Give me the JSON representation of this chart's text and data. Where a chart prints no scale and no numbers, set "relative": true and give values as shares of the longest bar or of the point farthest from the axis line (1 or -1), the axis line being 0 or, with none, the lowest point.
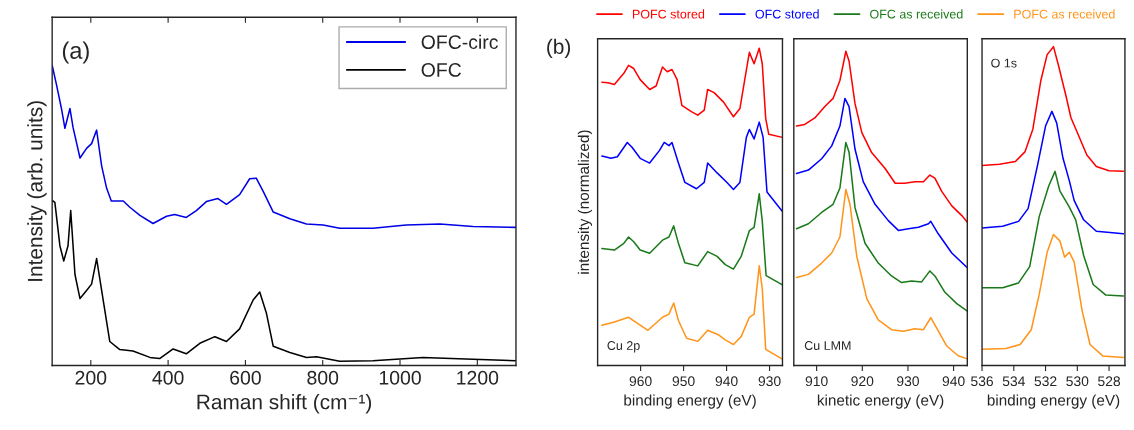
{
  "chart_data": [
    {
      "type": "line",
      "xlabel": "Raman shift (cm⁻¹)",
      "ylabel": "Intensity (arb. units)",
      "relative": true,
      "xlim": [
        100,
        1300
      ],
      "xticks": [
        200,
        400,
        600,
        800,
        1000,
        1200
      ],
      "legend": "top right",
      "annotations": [
        "(a)"
      ],
      "series": [
        {
          "name": "OFC-circ",
          "color": "#0000e6",
          "x": [
            100,
            111,
            124,
            133,
            146,
            154,
            172,
            189,
            202,
            215,
            228,
            241,
            253,
            284,
            301,
            327,
            361,
            396,
            417,
            447,
            473,
            499,
            529,
            551,
            585,
            611,
            628,
            646,
            672,
            715,
            758,
            801,
            844,
            930,
            1016,
            1103,
            1189,
            1300
          ],
          "values": [
            1.0,
            0.936,
            0.856,
            0.79,
            0.856,
            0.793,
            0.691,
            0.723,
            0.739,
            0.784,
            0.665,
            0.59,
            0.548,
            0.548,
            0.527,
            0.5,
            0.473,
            0.497,
            0.503,
            0.493,
            0.516,
            0.546,
            0.556,
            0.537,
            0.569,
            0.622,
            0.624,
            0.58,
            0.511,
            0.489,
            0.471,
            0.468,
            0.457,
            0.457,
            0.468,
            0.471,
            0.463,
            0.46
          ]
        },
        {
          "name": "OFC",
          "color": "#000000",
          "x": [
            100,
            107,
            120,
            130,
            141,
            148,
            159,
            172,
            189,
            202,
            215,
            228,
            249,
            275,
            309,
            353,
            378,
            413,
            447,
            482,
            521,
            551,
            585,
            620,
            637,
            654,
            672,
            715,
            758,
            784,
            844,
            930,
            1059,
            1189,
            1300
          ],
          "values": [
            0.55,
            0.543,
            0.399,
            0.348,
            0.399,
            0.516,
            0.303,
            0.223,
            0.25,
            0.271,
            0.356,
            0.25,
            0.08,
            0.053,
            0.048,
            0.027,
            0.023,
            0.055,
            0.039,
            0.074,
            0.096,
            0.08,
            0.122,
            0.218,
            0.245,
            0.176,
            0.064,
            0.043,
            0.027,
            0.029,
            0.014,
            0.016,
            0.027,
            0.021,
            0.016
          ]
        }
      ]
    },
    {
      "type": "line",
      "xlabel": "binding energy (eV)",
      "ylabel": "intensity (normalized)",
      "relative": true,
      "xlim": [
        970,
        927
      ],
      "xticks": [
        960,
        950,
        940,
        930
      ],
      "legend": "top",
      "annotations": [
        "(b)",
        "Cu 2p"
      ],
      "series": [
        {
          "name": "POFC stored",
          "color": "#ff0000",
          "x": [
            969.0,
            967.6,
            966.1,
            963.9,
            962.8,
            961.6,
            960.1,
            957.9,
            956.4,
            954.9,
            953.8,
            952.7,
            951.5,
            950.4,
            948.2,
            946.7,
            945.2,
            944.4,
            942.9,
            940.7,
            938.4,
            936.9,
            935.4,
            934.7,
            933.6,
            932.4,
            931.7,
            930.9,
            930.2,
            927
          ],
          "values": [
            0.893,
            0.891,
            0.886,
            0.921,
            0.946,
            0.936,
            0.901,
            0.87,
            0.881,
            0.941,
            0.926,
            0.933,
            0.901,
            0.82,
            0.8,
            0.789,
            0.805,
            0.87,
            0.86,
            0.83,
            0.784,
            0.81,
            0.931,
            0.987,
            0.951,
            1.0,
            0.951,
            0.779,
            0.729,
            0.719
          ]
        },
        {
          "name": "OFC stored",
          "color": "#0000ff",
          "x": [
            969.0,
            966.9,
            965.4,
            963.1,
            962.0,
            960.1,
            957.9,
            955.6,
            954.5,
            953.4,
            952.7,
            951.2,
            949.7,
            947.0,
            945.2,
            944.4,
            942.2,
            939.9,
            938.4,
            936.9,
            935.4,
            934.7,
            933.6,
            932.4,
            931.5,
            930.6,
            927
          ],
          "values": [
            0.66,
            0.653,
            0.658,
            0.703,
            0.688,
            0.653,
            0.638,
            0.678,
            0.703,
            0.693,
            0.703,
            0.638,
            0.577,
            0.557,
            0.577,
            0.638,
            0.607,
            0.577,
            0.555,
            0.577,
            0.719,
            0.744,
            0.714,
            0.767,
            0.719,
            0.547,
            0.485
          ]
        },
        {
          "name": "OFC as received",
          "color": "#1a7a1a",
          "x": [
            969.0,
            966.1,
            963.9,
            962.8,
            961.6,
            960.1,
            957.9,
            954.9,
            953.4,
            952.3,
            951.2,
            949.7,
            946.7,
            944.4,
            942.2,
            940.3,
            938.4,
            936.6,
            934.7,
            933.6,
            932.4,
            931.7,
            930.8,
            927
          ],
          "values": [
            0.369,
            0.364,
            0.385,
            0.405,
            0.39,
            0.364,
            0.354,
            0.395,
            0.405,
            0.44,
            0.385,
            0.324,
            0.314,
            0.359,
            0.344,
            0.318,
            0.304,
            0.344,
            0.425,
            0.435,
            0.541,
            0.455,
            0.283,
            0.254
          ]
        },
        {
          "name": "POFC as received",
          "color": "#ff9419",
          "x": [
            969.0,
            966.1,
            962.8,
            960.1,
            958.3,
            954.9,
            953.4,
            952.3,
            951.2,
            949.3,
            946.7,
            944.4,
            941.8,
            940.3,
            938.4,
            936.6,
            934.7,
            933.6,
            932.4,
            931.7,
            930.9,
            927
          ],
          "values": [
            0.127,
            0.137,
            0.152,
            0.127,
            0.111,
            0.152,
            0.162,
            0.197,
            0.142,
            0.086,
            0.076,
            0.111,
            0.096,
            0.081,
            0.066,
            0.091,
            0.152,
            0.162,
            0.314,
            0.243,
            0.051,
            0.02
          ]
        }
      ]
    },
    {
      "type": "line",
      "xlabel": "kinetic energy (eV)",
      "relative": true,
      "xlim": [
        905,
        943
      ],
      "xticks": [
        910,
        920,
        930,
        940
      ],
      "annotations": [
        "Cu LMM"
      ],
      "series": [
        {
          "color": "#ff0000",
          "x": [
            905.6,
            907.4,
            909.6,
            911.8,
            913.6,
            915.1,
            916.4,
            917.1,
            918.4,
            919.9,
            922.0,
            925.0,
            927.2,
            929.3,
            931.5,
            933.4,
            934.8,
            935.9,
            937.4,
            939.6,
            941.8,
            943
          ],
          "values": [
            0.762,
            0.767,
            0.788,
            0.824,
            0.85,
            0.907,
            1.0,
            0.969,
            0.834,
            0.741,
            0.679,
            0.627,
            0.58,
            0.58,
            0.585,
            0.585,
            0.606,
            0.596,
            0.554,
            0.508,
            0.477,
            0.456
          ]
        },
        {
          "color": "#0000ff",
          "x": [
            905.6,
            908.2,
            911.1,
            913.3,
            915.1,
            916.2,
            917.1,
            918.4,
            920.2,
            922.8,
            925.7,
            927.9,
            930.1,
            932.3,
            934.5,
            935.0,
            936.6,
            939.6,
            943
          ],
          "values": [
            0.611,
            0.622,
            0.658,
            0.699,
            0.762,
            0.85,
            0.824,
            0.689,
            0.585,
            0.513,
            0.461,
            0.43,
            0.435,
            0.44,
            0.451,
            0.459,
            0.42,
            0.358,
            0.311
          ]
        },
        {
          "color": "#1a7a1a",
          "x": [
            905.6,
            908.2,
            911.1,
            913.6,
            915.1,
            916.4,
            917.1,
            918.4,
            920.6,
            923.5,
            926.4,
            928.6,
            930.8,
            933.0,
            934.8,
            935.9,
            938.1,
            940.7,
            943
          ],
          "values": [
            0.435,
            0.451,
            0.487,
            0.513,
            0.565,
            0.71,
            0.679,
            0.503,
            0.389,
            0.326,
            0.285,
            0.264,
            0.269,
            0.266,
            0.301,
            0.285,
            0.233,
            0.197,
            0.173
          ]
        },
        {
          "color": "#ff9419",
          "x": [
            905.6,
            908.2,
            911.1,
            913.3,
            915.1,
            916.4,
            917.3,
            918.8,
            921.0,
            923.5,
            926.4,
            929.0,
            931.5,
            933.4,
            935.0,
            936.3,
            938.5,
            941.0,
            943
          ],
          "values": [
            0.28,
            0.29,
            0.326,
            0.358,
            0.409,
            0.56,
            0.513,
            0.347,
            0.212,
            0.145,
            0.114,
            0.109,
            0.117,
            0.114,
            0.152,
            0.119,
            0.062,
            0.031,
            0.021
          ]
        }
      ]
    },
    {
      "type": "line",
      "xlabel": "binding energy (eV)",
      "relative": true,
      "xlim": [
        536,
        527
      ],
      "xticks": [
        536,
        534,
        532,
        530,
        528
      ],
      "annotations": [
        "O 1s"
      ],
      "series": [
        {
          "color": "#ff0000",
          "x": [
            536.0,
            534.9,
            533.9,
            533.3,
            532.8,
            532.3,
            531.9,
            531.5,
            531.2,
            530.7,
            530.4,
            530.0,
            529.4,
            528.8,
            528.0,
            527.1
          ],
          "values": [
            0.627,
            0.631,
            0.64,
            0.67,
            0.741,
            0.893,
            0.975,
            1.0,
            0.944,
            0.843,
            0.777,
            0.731,
            0.66,
            0.624,
            0.611,
            0.609
          ]
        },
        {
          "color": "#0000ff",
          "x": [
            536.0,
            534.7,
            533.7,
            533.1,
            532.5,
            532.0,
            531.6,
            531.3,
            530.9,
            530.5,
            530.2,
            529.6,
            528.8,
            527.1
          ],
          "values": [
            0.431,
            0.437,
            0.452,
            0.492,
            0.629,
            0.751,
            0.797,
            0.761,
            0.65,
            0.579,
            0.518,
            0.457,
            0.421,
            0.413
          ]
        },
        {
          "color": "#1a7a1a",
          "x": [
            536.0,
            534.7,
            533.7,
            533.0,
            532.4,
            531.8,
            531.4,
            531.1,
            530.5,
            530.1,
            529.6,
            529.0,
            528.2,
            527.1
          ],
          "values": [
            0.244,
            0.244,
            0.259,
            0.31,
            0.467,
            0.563,
            0.609,
            0.548,
            0.497,
            0.457,
            0.345,
            0.254,
            0.221,
            0.218
          ]
        },
        {
          "color": "#ff9419",
          "x": [
            536.0,
            534.5,
            533.6,
            532.9,
            532.4,
            531.9,
            531.5,
            531.1,
            530.8,
            530.5,
            530.2,
            529.7,
            529.2,
            528.4,
            527.1
          ],
          "values": [
            0.051,
            0.053,
            0.066,
            0.112,
            0.223,
            0.355,
            0.411,
            0.391,
            0.34,
            0.355,
            0.325,
            0.173,
            0.066,
            0.03,
            0.025
          ]
        }
      ]
    }
  ]
}
